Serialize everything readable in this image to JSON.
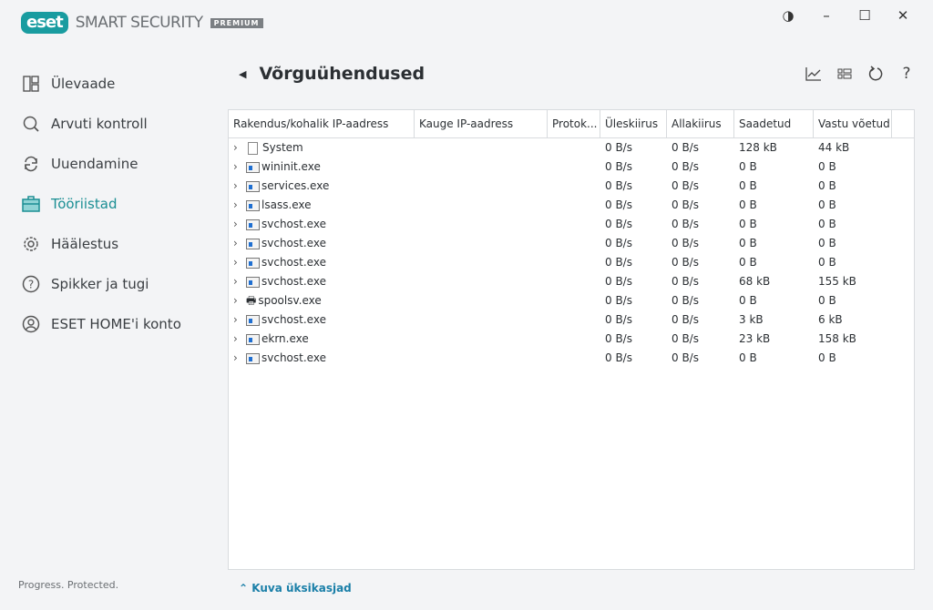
{
  "app": {
    "logo": "eset",
    "product": "SMART SECURITY",
    "edition": "PREMIUM",
    "tagline": "Progress. Protected."
  },
  "window": {
    "contrast": "◑",
    "minimize": "–",
    "maximize": "☐",
    "close": "✕"
  },
  "nav": [
    {
      "label": "Ülevaade",
      "icon": "dashboard-icon"
    },
    {
      "label": "Arvuti kontroll",
      "icon": "search-icon"
    },
    {
      "label": "Uuendamine",
      "icon": "refresh-icon"
    },
    {
      "label": "Tööriistad",
      "icon": "briefcase-icon",
      "active": true
    },
    {
      "label": "Häälestus",
      "icon": "gear-icon"
    },
    {
      "label": "Spikker ja tugi",
      "icon": "help-icon"
    },
    {
      "label": "ESET HOME'i konto",
      "icon": "account-icon"
    }
  ],
  "accent": "#199ca0",
  "page": {
    "title": "Võrguühendused",
    "show_details": "Kuva üksikasjad"
  },
  "table": {
    "columns": [
      "Rakendus/kohalik IP-aadress",
      "Kauge IP-aadress",
      "Protok...",
      "Üleskiirus",
      "Allakiirus",
      "Saadetud",
      "Vastu võetud"
    ],
    "rows": [
      [
        "System",
        "",
        "",
        "0 B/s",
        "0 B/s",
        "128 kB",
        "44 kB"
      ],
      [
        "wininit.exe",
        "",
        "",
        "0 B/s",
        "0 B/s",
        "0 B",
        "0 B"
      ],
      [
        "services.exe",
        "",
        "",
        "0 B/s",
        "0 B/s",
        "0 B",
        "0 B"
      ],
      [
        "lsass.exe",
        "",
        "",
        "0 B/s",
        "0 B/s",
        "0 B",
        "0 B"
      ],
      [
        "svchost.exe",
        "",
        "",
        "0 B/s",
        "0 B/s",
        "0 B",
        "0 B"
      ],
      [
        "svchost.exe",
        "",
        "",
        "0 B/s",
        "0 B/s",
        "0 B",
        "0 B"
      ],
      [
        "svchost.exe",
        "",
        "",
        "0 B/s",
        "0 B/s",
        "0 B",
        "0 B"
      ],
      [
        "svchost.exe",
        "",
        "",
        "0 B/s",
        "0 B/s",
        "68 kB",
        "155 kB"
      ],
      [
        "spoolsv.exe",
        "",
        "",
        "0 B/s",
        "0 B/s",
        "0 B",
        "0 B"
      ],
      [
        "svchost.exe",
        "",
        "",
        "0 B/s",
        "0 B/s",
        "3 kB",
        "6 kB"
      ],
      [
        "ekrn.exe",
        "",
        "",
        "0 B/s",
        "0 B/s",
        "23 kB",
        "158 kB"
      ],
      [
        "svchost.exe",
        "",
        "",
        "0 B/s",
        "0 B/s",
        "0 B",
        "0 B"
      ]
    ]
  }
}
